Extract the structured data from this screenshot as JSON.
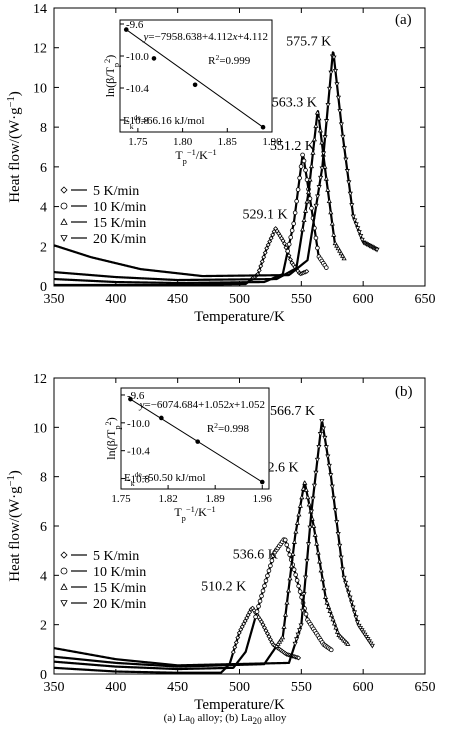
{
  "figure": {
    "caption_parts": [
      {
        "t": "(a) La",
        "sub": false
      },
      {
        "t": "0",
        "sub": true
      },
      {
        "t": " alloy; (b) La",
        "sub": false
      },
      {
        "t": "20",
        "sub": true
      },
      {
        "t": " alloy",
        "sub": false
      }
    ]
  },
  "chart_data": [
    {
      "type": "line",
      "panel_label": "(a)",
      "xlabel": "Temperature/K",
      "ylabel": "Heat flow/(W·g⁻¹)",
      "xlim": [
        350,
        650
      ],
      "ylim": [
        0,
        14
      ],
      "xticks": [
        350,
        400,
        450,
        500,
        550,
        600,
        650
      ],
      "yticks": [
        0,
        2,
        4,
        6,
        8,
        10,
        12,
        14
      ],
      "legend": {
        "placement": "middle-left",
        "entries": [
          {
            "label": "5 K/min",
            "marker": "diamond"
          },
          {
            "label": "10 K/min",
            "marker": "circle"
          },
          {
            "label": "15 K/min",
            "marker": "triangle-up"
          },
          {
            "label": "20 K/min",
            "marker": "triangle-down"
          }
        ]
      },
      "series": [
        {
          "rate": "5 K/min",
          "peak_label": "529.1 K",
          "peak": [
            529.1,
            2.9
          ],
          "points": [
            [
              350,
              0.05
            ],
            [
              450,
              0.05
            ],
            [
              505,
              0.1
            ],
            [
              515,
              0.6
            ],
            [
              522,
              1.9
            ],
            [
              529.1,
              2.9
            ],
            [
              536,
              2.2
            ],
            [
              542,
              1.2
            ],
            [
              549,
              0.6
            ],
            [
              555,
              0.75
            ]
          ]
        },
        {
          "rate": "10 K/min",
          "peak_label": "551.2 K",
          "peak": [
            551.2,
            6.7
          ],
          "points": [
            [
              350,
              0.35
            ],
            [
              400,
              0.2
            ],
            [
              450,
              0.15
            ],
            [
              520,
              0.2
            ],
            [
              535,
              0.6
            ],
            [
              544,
              3.2
            ],
            [
              551.2,
              6.7
            ],
            [
              558,
              4.0
            ],
            [
              564,
              1.5
            ],
            [
              571,
              0.85
            ]
          ]
        },
        {
          "rate": "15 K/min",
          "peak_label": "563.3 K",
          "peak": [
            563.3,
            8.9
          ],
          "points": [
            [
              350,
              0.7
            ],
            [
              400,
              0.45
            ],
            [
              450,
              0.3
            ],
            [
              530,
              0.35
            ],
            [
              546,
              0.9
            ],
            [
              556,
              4.8
            ],
            [
              563.3,
              8.9
            ],
            [
              570,
              5.5
            ],
            [
              577,
              2.2
            ],
            [
              585,
              1.35
            ]
          ]
        },
        {
          "rate": "20 K/min",
          "peak_label": "575.7 K",
          "peak": [
            575.7,
            11.9
          ],
          "points": [
            [
              350,
              2.05
            ],
            [
              380,
              1.45
            ],
            [
              420,
              0.85
            ],
            [
              470,
              0.5
            ],
            [
              540,
              0.55
            ],
            [
              555,
              1.3
            ],
            [
              567,
              6.0
            ],
            [
              575.7,
              11.9
            ],
            [
              583,
              7.8
            ],
            [
              592,
              3.5
            ],
            [
              600,
              2.2
            ],
            [
              612,
              1.8
            ]
          ]
        }
      ],
      "inset": {
        "xlabel": "T_p⁻¹/K⁻¹",
        "ylabel": "ln(β/T_p²)",
        "xlim": [
          1.73,
          1.9
        ],
        "ylim": [
          -10.95,
          -9.55
        ],
        "xticks": [
          "1.75",
          "1.80",
          "1.85",
          "1.90"
        ],
        "yticks": [
          "-9.6",
          "-10.0",
          "-10.4",
          "-10.8"
        ],
        "equation": "y=−7958.638x+4.112",
        "r2": "R²=0.999",
        "energy": "E_k^de=66.16 kJ/mol",
        "points": [
          [
            1.737,
            -9.67
          ],
          [
            1.768,
            -10.03
          ],
          [
            1.814,
            -10.36
          ],
          [
            1.89,
            -10.89
          ]
        ]
      }
    },
    {
      "type": "line",
      "panel_label": "(b)",
      "xlabel": "Temperature/K",
      "ylabel": "Heat flow/(W·g⁻¹)",
      "xlim": [
        350,
        650
      ],
      "ylim": [
        0,
        12
      ],
      "xticks": [
        350,
        400,
        450,
        500,
        550,
        600,
        650
      ],
      "yticks": [
        0,
        2,
        4,
        6,
        8,
        10,
        12
      ],
      "legend": {
        "placement": "bottom-left",
        "entries": [
          {
            "label": "5 K/min",
            "marker": "diamond"
          },
          {
            "label": "10 K/min",
            "marker": "circle"
          },
          {
            "label": "15 K/min",
            "marker": "triangle-up"
          },
          {
            "label": "20 K/min",
            "marker": "triangle-down"
          }
        ]
      },
      "series": [
        {
          "rate": "5 K/min",
          "peak_label": "510.2 K",
          "peak": [
            510.2,
            2.7
          ],
          "points": [
            [
              350,
              0.25
            ],
            [
              400,
              0.1
            ],
            [
              450,
              0.05
            ],
            [
              485,
              0.05
            ],
            [
              492,
              0.4
            ],
            [
              500,
              1.7
            ],
            [
              510.2,
              2.7
            ],
            [
              518,
              2.1
            ],
            [
              527,
              1.2
            ],
            [
              538,
              0.8
            ],
            [
              548,
              0.65
            ]
          ]
        },
        {
          "rate": "10 K/min",
          "peak_label": "536.6 K",
          "peak": [
            536.6,
            5.5
          ],
          "points": [
            [
              350,
              0.5
            ],
            [
              400,
              0.3
            ],
            [
              450,
              0.2
            ],
            [
              495,
              0.25
            ],
            [
              505,
              0.9
            ],
            [
              518,
              3.2
            ],
            [
              528,
              4.9
            ],
            [
              536.6,
              5.5
            ],
            [
              545,
              4.1
            ],
            [
              555,
              2.2
            ],
            [
              568,
              1.2
            ],
            [
              575,
              0.95
            ]
          ]
        },
        {
          "rate": "15 K/min",
          "peak_label": "552.6 K",
          "peak": [
            552.6,
            7.8
          ],
          "points": [
            [
              350,
              0.7
            ],
            [
              400,
              0.45
            ],
            [
              450,
              0.3
            ],
            [
              520,
              0.4
            ],
            [
              535,
              1.5
            ],
            [
              545,
              5.6
            ],
            [
              552.6,
              7.8
            ],
            [
              560,
              6.0
            ],
            [
              570,
              3.0
            ],
            [
              580,
              1.6
            ],
            [
              588,
              1.2
            ]
          ]
        },
        {
          "rate": "20 K/min",
          "peak_label": "566.7 K",
          "peak": [
            566.7,
            10.3
          ],
          "points": [
            [
              350,
              1.05
            ],
            [
              400,
              0.6
            ],
            [
              450,
              0.35
            ],
            [
              540,
              0.45
            ],
            [
              550,
              2.0
            ],
            [
              558,
              6.5
            ],
            [
              566.7,
              10.3
            ],
            [
              574,
              8.0
            ],
            [
              584,
              4.0
            ],
            [
              596,
              2.0
            ],
            [
              608,
              1.1
            ]
          ]
        }
      ],
      "inset": {
        "xlabel": "T_p⁻¹/K⁻¹",
        "ylabel": "ln(β/T_p²)",
        "xlim": [
          1.75,
          1.97
        ],
        "ylim": [
          -10.95,
          -9.5
        ],
        "xticks": [
          "1.75",
          "1.82",
          "1.89",
          "1.96"
        ],
        "yticks": [
          "-9.6",
          "-10.0",
          "-10.4",
          "-10.8"
        ],
        "equation": "y=−6074.684x+1.052",
        "r2": "R²=0.998",
        "energy": "E_k^de=50.50 kJ/mol",
        "points": [
          [
            1.764,
            -9.66
          ],
          [
            1.81,
            -9.93
          ],
          [
            1.864,
            -10.27
          ],
          [
            1.96,
            -10.85
          ]
        ]
      }
    }
  ]
}
